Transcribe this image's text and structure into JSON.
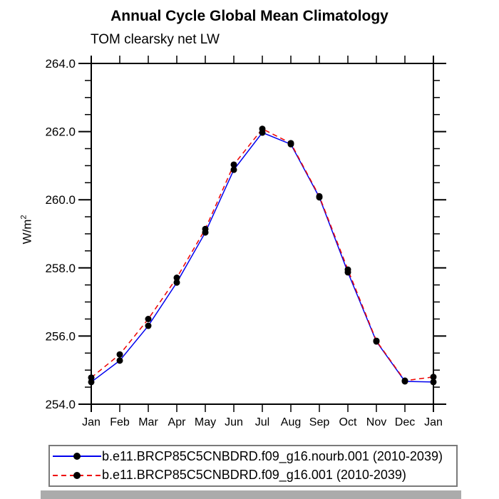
{
  "title": "Annual Cycle Global Mean Climatology",
  "subtitle": "TOM clearsky net LW",
  "y_axis": {
    "unit_base": "W/m",
    "unit_exponent": "2",
    "tick_labels": [
      "264.0",
      "262.0",
      "260.0",
      "258.0",
      "256.0",
      "254.0"
    ]
  },
  "x_axis": {
    "tick_labels": [
      "Jan",
      "Feb",
      "Mar",
      "Apr",
      "May",
      "Jun",
      "Jul",
      "Aug",
      "Sep",
      "Oct",
      "Nov",
      "Dec",
      "Jan"
    ]
  },
  "chart_data": {
    "type": "line",
    "title": "Annual Cycle Global Mean Climatology",
    "subtitle": "TOM clearsky net LW",
    "ylabel": "W/m2",
    "categories": [
      "Jan",
      "Feb",
      "Mar",
      "Apr",
      "May",
      "Jun",
      "Jul",
      "Aug",
      "Sep",
      "Oct",
      "Nov",
      "Dec",
      "Jan"
    ],
    "ylim": [
      254.0,
      264.0
    ],
    "ytick_major": 2.0,
    "ytick_minor": 0.5,
    "grid": false,
    "legend_position": "bottom",
    "marker": "filled-circle",
    "marker_color": "#000000",
    "series": [
      {
        "name": "b.e11.BRCP85C5CNBDRD.f09_g16.nourb.001 (2010-2039)",
        "color": "#0000ee",
        "line_style": "solid",
        "values": [
          254.65,
          255.28,
          256.3,
          257.57,
          259.04,
          260.88,
          261.97,
          261.63,
          260.07,
          257.87,
          255.84,
          254.67,
          254.65
        ]
      },
      {
        "name": "b.e11.BRCP85C5CNBDRD.f09_g16.001 (2010-2039)",
        "color": "#ee0000",
        "line_style": "dashed",
        "values": [
          254.78,
          255.46,
          256.5,
          257.71,
          259.14,
          261.03,
          262.08,
          261.66,
          260.1,
          257.95,
          255.86,
          254.69,
          254.8
        ]
      }
    ]
  }
}
